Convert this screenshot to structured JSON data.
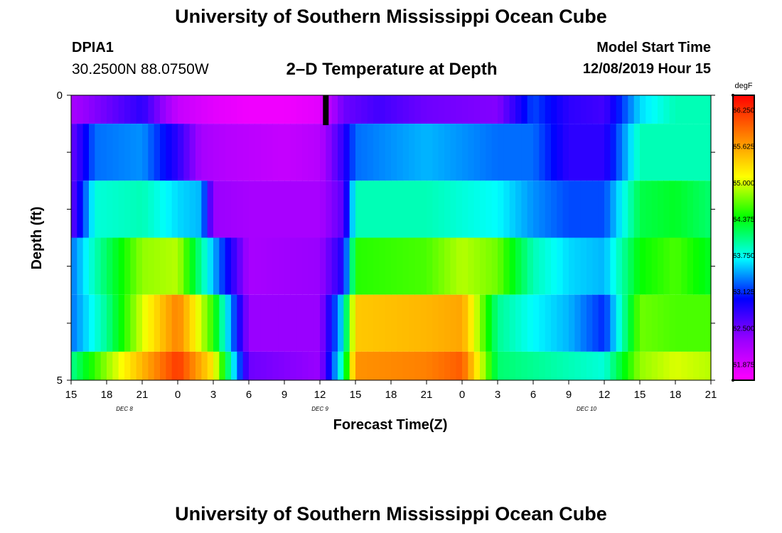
{
  "header": {
    "title": "University of Southern Mississippi Ocean Cube",
    "footer_title": "University of Southern Mississippi Ocean Cube",
    "station_id": "DPIA1",
    "station_coords": "30.2500N 88.0750W",
    "plot_title": "2–D Temperature at Depth",
    "model_label": "Model Start Time",
    "model_time": "12/08/2019 Hour 15"
  },
  "chart_data": {
    "type": "heatmap",
    "title": "2–D Temperature at Depth",
    "xlabel": "Forecast Time(Z)",
    "ylabel": "Depth (ft)",
    "x_range_hours": [
      0,
      54
    ],
    "y_range_ft": [
      0,
      5
    ],
    "y_ticks": [
      0,
      1,
      2,
      3,
      4,
      5
    ],
    "y_tick_labels": [
      "0",
      "",
      "",
      "",
      "",
      "5"
    ],
    "x_tick_labels": [
      "15",
      "18",
      "21",
      "0",
      "3",
      "6",
      "9",
      "12",
      "15",
      "18",
      "21",
      "0",
      "3",
      "6",
      "9",
      "12",
      "15",
      "18",
      "21"
    ],
    "date_labels": [
      {
        "text": "DEC 8",
        "hour": 4.5
      },
      {
        "text": "DEC 9",
        "hour": 21
      },
      {
        "text": "DEC 10",
        "hour": 43.5
      }
    ],
    "now_marker_hour": 21.5,
    "colorbar": {
      "unit": "degF",
      "min": 61.6,
      "max": 66.5,
      "labels": [
        "66.250",
        "65.625",
        "65.000",
        "64.375",
        "63.750",
        "63.125",
        "62.500",
        "61.875"
      ],
      "stops": [
        "#ff00ff",
        "#9900ff",
        "#0000ff",
        "#00ffff",
        "#00ff00",
        "#ffff00",
        "#ff8000",
        "#ff0000"
      ]
    },
    "layers": [
      {
        "depth": "0-0.5 ft",
        "values_by_hour": [
          [
            0,
            62.2
          ],
          [
            3,
            62.5
          ],
          [
            6,
            62.8
          ],
          [
            9,
            62.0
          ],
          [
            12,
            61.8
          ],
          [
            15,
            61.7
          ],
          [
            18,
            61.7
          ],
          [
            21,
            61.8
          ],
          [
            23,
            62.5
          ],
          [
            26,
            62.7
          ],
          [
            30,
            62.5
          ],
          [
            36,
            62.4
          ],
          [
            39,
            63.2
          ],
          [
            42,
            62.8
          ],
          [
            45,
            62.7
          ],
          [
            48,
            63.6
          ],
          [
            51,
            63.9
          ],
          [
            54,
            63.9
          ]
        ]
      },
      {
        "depth": "0.5-1.5 ft",
        "values_by_hour": [
          [
            0,
            62.5
          ],
          [
            2,
            63.3
          ],
          [
            6,
            63.4
          ],
          [
            9,
            62.8
          ],
          [
            11,
            62.2
          ],
          [
            13,
            62.1
          ],
          [
            18,
            62.0
          ],
          [
            21,
            62.1
          ],
          [
            23,
            62.8
          ],
          [
            24,
            63.3
          ],
          [
            30,
            63.5
          ],
          [
            36,
            63.3
          ],
          [
            39,
            63.3
          ],
          [
            42,
            62.8
          ],
          [
            45,
            62.8
          ],
          [
            48,
            63.9
          ],
          [
            51,
            63.9
          ],
          [
            54,
            63.9
          ]
        ]
      },
      {
        "depth": "1.5-2.5 ft",
        "values_by_hour": [
          [
            0,
            62.5
          ],
          [
            2,
            63.8
          ],
          [
            6,
            63.9
          ],
          [
            9,
            63.6
          ],
          [
            11,
            63.5
          ],
          [
            12,
            62.3
          ],
          [
            15,
            62.2
          ],
          [
            21,
            62.2
          ],
          [
            23,
            62.6
          ],
          [
            24,
            63.9
          ],
          [
            30,
            63.9
          ],
          [
            36,
            63.7
          ],
          [
            39,
            63.4
          ],
          [
            42,
            63.2
          ],
          [
            45,
            63.2
          ],
          [
            48,
            64.2
          ],
          [
            51,
            64.3
          ],
          [
            54,
            64.1
          ]
        ]
      },
      {
        "depth": "2.5-3.5 ft",
        "values_by_hour": [
          [
            0,
            63.3
          ],
          [
            2,
            63.9
          ],
          [
            6,
            64.8
          ],
          [
            9,
            64.9
          ],
          [
            12,
            63.5
          ],
          [
            15,
            62.2
          ],
          [
            21,
            62.3
          ],
          [
            23,
            62.9
          ],
          [
            24,
            64.5
          ],
          [
            30,
            64.6
          ],
          [
            33,
            64.9
          ],
          [
            36,
            64.7
          ],
          [
            39,
            63.9
          ],
          [
            42,
            63.6
          ],
          [
            45,
            63.5
          ],
          [
            48,
            64.4
          ],
          [
            51,
            64.6
          ],
          [
            54,
            64.3
          ]
        ]
      },
      {
        "depth": "3.5-4.5 ft",
        "values_by_hour": [
          [
            0,
            63.3
          ],
          [
            3,
            64.0
          ],
          [
            6,
            65.0
          ],
          [
            9,
            65.8
          ],
          [
            12,
            64.5
          ],
          [
            15,
            62.3
          ],
          [
            21,
            62.3
          ],
          [
            23,
            63.7
          ],
          [
            24,
            65.4
          ],
          [
            30,
            65.5
          ],
          [
            33,
            65.6
          ],
          [
            36,
            64.0
          ],
          [
            39,
            63.7
          ],
          [
            42,
            63.5
          ],
          [
            45,
            63.1
          ],
          [
            48,
            64.7
          ],
          [
            51,
            64.6
          ],
          [
            54,
            64.6
          ]
        ]
      },
      {
        "depth": "4.5-5 ft",
        "values_by_hour": [
          [
            0,
            64.0
          ],
          [
            3,
            64.8
          ],
          [
            6,
            65.5
          ],
          [
            9,
            66.2
          ],
          [
            12,
            65.2
          ],
          [
            15,
            62.5
          ],
          [
            21,
            62.3
          ],
          [
            23,
            64.0
          ],
          [
            24,
            65.7
          ],
          [
            30,
            65.8
          ],
          [
            33,
            66.0
          ],
          [
            36,
            64.1
          ],
          [
            39,
            64.0
          ],
          [
            42,
            63.9
          ],
          [
            45,
            63.8
          ],
          [
            48,
            64.8
          ],
          [
            51,
            65.0
          ],
          [
            54,
            64.9
          ]
        ]
      }
    ]
  }
}
